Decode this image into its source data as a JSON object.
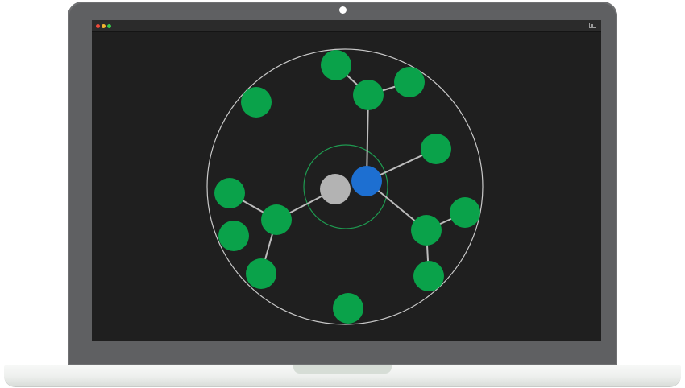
{
  "graph": {
    "colors": {
      "background": "#1f1f1f",
      "outer_ring": "#c9c9c9",
      "inner_ring": "#1e9a50",
      "edge": "#bdbdbd",
      "green_node": "#0aa24a",
      "gray_node": "#b3b3b3",
      "blue_node": "#1d6fd1"
    },
    "nodes": [
      {
        "id": "n1",
        "kind": "green"
      },
      {
        "id": "n2",
        "kind": "green"
      },
      {
        "id": "n3",
        "kind": "green"
      },
      {
        "id": "n4",
        "kind": "green"
      },
      {
        "id": "n5",
        "kind": "green"
      },
      {
        "id": "n6",
        "kind": "green"
      },
      {
        "id": "n7",
        "kind": "green"
      },
      {
        "id": "n8",
        "kind": "green"
      },
      {
        "id": "n9",
        "kind": "green"
      },
      {
        "id": "n10",
        "kind": "green"
      },
      {
        "id": "n11",
        "kind": "green"
      },
      {
        "id": "n12",
        "kind": "green"
      },
      {
        "id": "n13",
        "kind": "green"
      },
      {
        "id": "gray-center",
        "kind": "gray"
      },
      {
        "id": "blue-center",
        "kind": "blue"
      }
    ],
    "edges": [
      [
        "n1",
        "n2"
      ],
      [
        "n2",
        "n3"
      ],
      [
        "n2",
        "blue-center"
      ],
      [
        "n4",
        "blue-center"
      ],
      [
        "blue-center",
        "n10"
      ],
      [
        "n10",
        "n11"
      ],
      [
        "n10",
        "n12"
      ],
      [
        "gray-center",
        "n6"
      ],
      [
        "n5",
        "n6"
      ],
      [
        "n6",
        "n8"
      ]
    ]
  }
}
